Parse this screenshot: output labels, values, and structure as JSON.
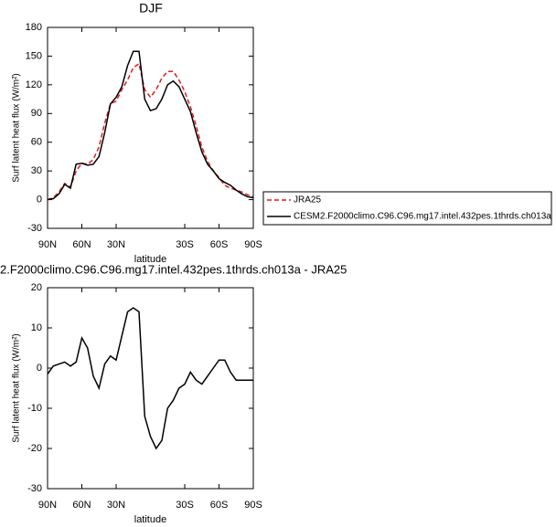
{
  "chart_data": [
    {
      "type": "line",
      "title": "DJF",
      "xlabel": "latitude",
      "ylabel": "Surf latent heat flux (W/m²)",
      "x": [
        90,
        85,
        80,
        75,
        70,
        65,
        60,
        55,
        50,
        45,
        40,
        35,
        30,
        25,
        20,
        15,
        10,
        5,
        0,
        -5,
        -10,
        -15,
        -20,
        -25,
        -30,
        -35,
        -40,
        -45,
        -50,
        -55,
        -60,
        -65,
        -70,
        -75,
        -80,
        -85,
        -90
      ],
      "series": [
        {
          "name": "JRA25",
          "color": "#e31a1c",
          "dash": true,
          "values": [
            0,
            2,
            8,
            17,
            13,
            30,
            38,
            37,
            42,
            55,
            80,
            100,
            103,
            115,
            125,
            138,
            142,
            115,
            107,
            115,
            127,
            134,
            134,
            125,
            113,
            97,
            77,
            55,
            40,
            30,
            23,
            15,
            12,
            10,
            8,
            5,
            3
          ]
        },
        {
          "name": "CESM2.F2000climo.C96.C96.mg17.intel.432pes.1thrds.ch013a",
          "color": "#000000",
          "dash": false,
          "values": [
            0,
            1,
            6,
            16,
            12,
            37,
            38,
            36,
            37,
            45,
            70,
            100,
            107,
            118,
            140,
            155,
            155,
            105,
            93,
            95,
            105,
            120,
            124,
            118,
            105,
            92,
            70,
            50,
            37,
            30,
            22,
            18,
            15,
            10,
            6,
            3,
            2
          ]
        }
      ],
      "xlim": [
        90,
        -90
      ],
      "xticks": [
        {
          "value": 90,
          "label": "90N"
        },
        {
          "value": 60,
          "label": "60N"
        },
        {
          "value": 30,
          "label": "30N"
        },
        {
          "value": -30,
          "label": "30S"
        },
        {
          "value": -60,
          "label": "60S"
        },
        {
          "value": -90,
          "label": "90S"
        }
      ],
      "ylim": [
        -30,
        180
      ],
      "yticks": [
        -30,
        0,
        30,
        60,
        90,
        120,
        150,
        180
      ],
      "legend": "right"
    },
    {
      "type": "line",
      "title": "2.F2000climo.C96.C96.mg17.intel.432pes.1thrds.ch013a - JRA25",
      "xlabel": "latitude",
      "ylabel": "Surf latent heat flux (W/m²)",
      "x": [
        90,
        85,
        80,
        75,
        70,
        65,
        60,
        55,
        50,
        45,
        40,
        35,
        30,
        25,
        20,
        15,
        10,
        5,
        0,
        -5,
        -10,
        -15,
        -20,
        -25,
        -30,
        -35,
        -40,
        -45,
        -50,
        -55,
        -60,
        -65,
        -70,
        -75,
        -80,
        -85,
        -90
      ],
      "series": [
        {
          "color": "#000000",
          "dash": false,
          "values": [
            -1.5,
            0.5,
            1,
            1.5,
            0.5,
            1.5,
            7.5,
            5,
            -2,
            -5,
            1,
            3,
            2,
            8,
            14,
            15,
            14,
            -12,
            -17,
            -20,
            -18,
            -10,
            -8,
            -5,
            -4,
            -1,
            -3,
            -4,
            -2,
            0,
            2,
            2,
            -1,
            -3,
            -3,
            -3,
            -3
          ]
        }
      ],
      "xlim": [
        90,
        -90
      ],
      "xticks": [
        {
          "value": 90,
          "label": "90N"
        },
        {
          "value": 60,
          "label": "60N"
        },
        {
          "value": 30,
          "label": "30N"
        },
        {
          "value": -30,
          "label": "30S"
        },
        {
          "value": -60,
          "label": "60S"
        },
        {
          "value": -90,
          "label": "90S"
        }
      ],
      "ylim": [
        -30,
        20
      ],
      "yticks": [
        -30,
        -20,
        -10,
        0,
        10,
        20
      ]
    }
  ]
}
